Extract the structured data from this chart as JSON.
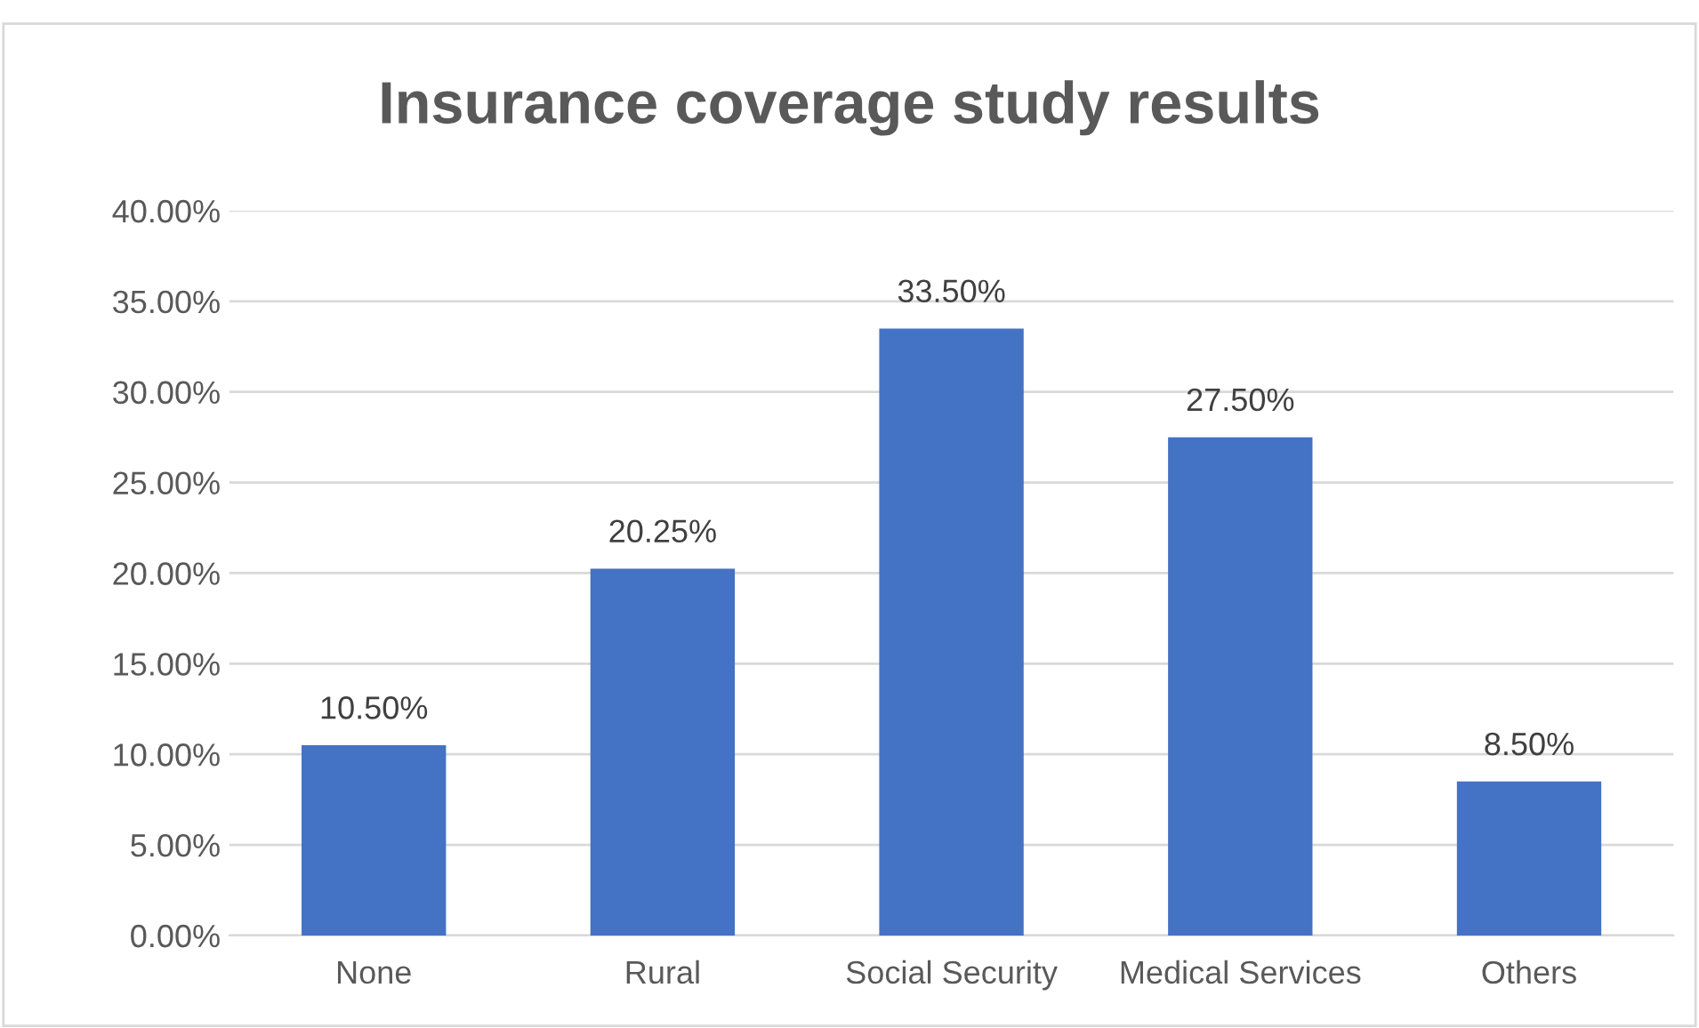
{
  "chart_data": {
    "type": "bar",
    "title": "Insurance coverage study results",
    "categories": [
      "None",
      "Rural",
      "Social Security",
      "Medical Services",
      "Others"
    ],
    "values": [
      10.5,
      20.25,
      33.5,
      27.5,
      8.5
    ],
    "value_labels": [
      "10.50%",
      "20.25%",
      "33.50%",
      "27.50%",
      "8.50%"
    ],
    "color": "#4472c4",
    "ylim": [
      0,
      40
    ],
    "yticks": [
      {
        "value": 0,
        "label": "0.00%"
      },
      {
        "value": 5,
        "label": "5.00%"
      },
      {
        "value": 10,
        "label": "10.00%"
      },
      {
        "value": 15,
        "label": "15.00%"
      },
      {
        "value": 20,
        "label": "20.00%"
      },
      {
        "value": 25,
        "label": "25.00%"
      },
      {
        "value": 30,
        "label": "30.00%"
      },
      {
        "value": 35,
        "label": "35.00%"
      },
      {
        "value": 40,
        "label": "40.00%"
      }
    ],
    "grid": "y"
  }
}
